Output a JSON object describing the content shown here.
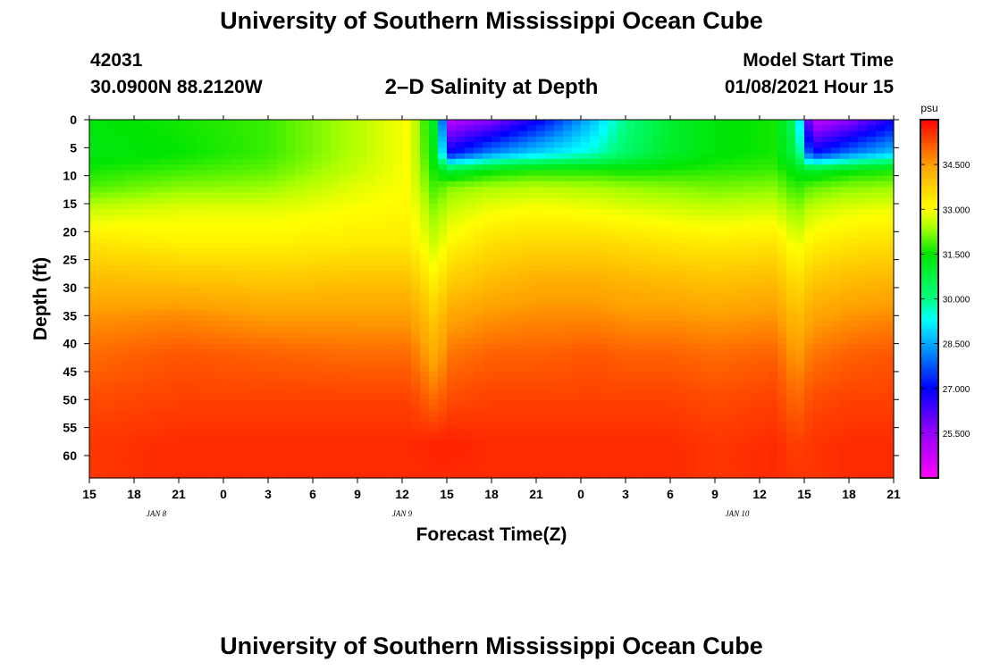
{
  "header": {
    "top_title": "University of Southern Mississippi Ocean Cube",
    "bottom_title": "University of Southern Mississippi Ocean Cube",
    "station_id": "42031",
    "station_coords": "30.0900N 88.2120W",
    "plot_title": "2–D Salinity at Depth",
    "model_start_label": "Model Start Time",
    "model_start_time": "01/08/2021 Hour 15"
  },
  "chart_data": {
    "type": "heatmap",
    "title": "2–D Salinity at Depth",
    "xlabel": "Forecast Time(Z)",
    "ylabel": "Depth (ft)",
    "x_hours_range": [
      0,
      54
    ],
    "y_range": [
      0,
      64
    ],
    "x_ticks": [
      {
        "hour": 0,
        "label": "15"
      },
      {
        "hour": 3,
        "label": "18"
      },
      {
        "hour": 6,
        "label": "21"
      },
      {
        "hour": 9,
        "label": "0"
      },
      {
        "hour": 12,
        "label": "3"
      },
      {
        "hour": 15,
        "label": "6"
      },
      {
        "hour": 18,
        "label": "9"
      },
      {
        "hour": 21,
        "label": "12"
      },
      {
        "hour": 24,
        "label": "15"
      },
      {
        "hour": 27,
        "label": "18"
      },
      {
        "hour": 30,
        "label": "21"
      },
      {
        "hour": 33,
        "label": "0"
      },
      {
        "hour": 36,
        "label": "3"
      },
      {
        "hour": 39,
        "label": "6"
      },
      {
        "hour": 42,
        "label": "9"
      },
      {
        "hour": 45,
        "label": "12"
      },
      {
        "hour": 48,
        "label": "15"
      },
      {
        "hour": 51,
        "label": "18"
      },
      {
        "hour": 54,
        "label": "21"
      }
    ],
    "day_labels": [
      {
        "hour": 4.5,
        "label": "JAN 8"
      },
      {
        "hour": 21,
        "label": "JAN 9"
      },
      {
        "hour": 43.5,
        "label": "JAN 10"
      }
    ],
    "y_ticks": [
      0,
      5,
      10,
      15,
      20,
      25,
      30,
      35,
      40,
      45,
      50,
      55,
      60
    ],
    "colorbar": {
      "unit": "psu",
      "range": [
        24.0,
        36.0
      ],
      "ticks": [
        "25.500",
        "27.000",
        "28.500",
        "30.000",
        "31.500",
        "33.000",
        "34.500"
      ]
    },
    "salinity_grid_psu": {
      "times_hours": [
        0,
        6,
        12,
        18,
        21.5,
        23.2,
        24.2,
        27,
        30,
        34,
        36,
        39,
        42,
        46,
        47.5,
        48.5,
        51,
        54
      ],
      "depths_ft": [
        0,
        6,
        9,
        12,
        16,
        22,
        28,
        35,
        42,
        50,
        58,
        64
      ],
      "values": [
        [
          31.4,
          31.6,
          31.8,
          32.5,
          33.0,
          31.0,
          25.0,
          25.6,
          26.8,
          28.8,
          30.0,
          31.0,
          31.4,
          31.6,
          30.2,
          24.8,
          25.5,
          26.8
        ],
        [
          31.3,
          31.5,
          31.8,
          32.5,
          33.0,
          31.2,
          27.0,
          28.2,
          28.9,
          29.6,
          30.3,
          31.0,
          31.4,
          31.6,
          30.6,
          27.0,
          28.0,
          28.8
        ],
        [
          31.6,
          31.8,
          32.0,
          32.6,
          33.0,
          31.5,
          30.8,
          31.4,
          31.6,
          31.6,
          31.5,
          31.6,
          31.7,
          31.8,
          31.3,
          31.0,
          31.4,
          31.6
        ],
        [
          31.9,
          32.2,
          32.3,
          32.8,
          33.0,
          31.8,
          32.2,
          32.4,
          32.5,
          32.4,
          32.3,
          32.2,
          32.1,
          32.2,
          31.7,
          32.0,
          32.2,
          32.3
        ],
        [
          32.6,
          32.8,
          32.8,
          33.0,
          33.1,
          32.2,
          32.6,
          32.9,
          33.0,
          32.9,
          32.8,
          32.7,
          32.6,
          32.7,
          32.2,
          32.6,
          32.8,
          32.9
        ],
        [
          33.4,
          33.2,
          33.2,
          33.3,
          33.3,
          32.6,
          33.1,
          33.5,
          33.6,
          33.6,
          33.5,
          33.4,
          33.3,
          33.4,
          32.8,
          33.2,
          33.4,
          33.5
        ],
        [
          34.0,
          33.9,
          33.8,
          33.9,
          33.9,
          33.1,
          33.7,
          34.0,
          34.2,
          34.2,
          34.1,
          34.0,
          33.9,
          34.0,
          33.4,
          33.8,
          34.0,
          34.1
        ],
        [
          34.6,
          34.7,
          34.5,
          34.5,
          34.5,
          33.8,
          34.4,
          34.6,
          34.7,
          34.7,
          34.6,
          34.6,
          34.5,
          34.6,
          34.0,
          34.4,
          34.6,
          34.7
        ],
        [
          35.0,
          35.2,
          35.1,
          35.0,
          35.0,
          34.3,
          34.9,
          35.1,
          35.1,
          35.2,
          35.1,
          35.1,
          35.0,
          35.1,
          34.5,
          34.9,
          35.1,
          35.2
        ],
        [
          35.3,
          35.4,
          35.4,
          35.4,
          35.4,
          35.0,
          35.3,
          35.4,
          35.4,
          35.4,
          35.4,
          35.4,
          35.3,
          35.4,
          35.0,
          35.3,
          35.4,
          35.4
        ],
        [
          35.5,
          35.6,
          35.6,
          35.6,
          35.6,
          35.7,
          35.7,
          35.6,
          35.6,
          35.6,
          35.6,
          35.6,
          35.5,
          35.6,
          35.4,
          35.5,
          35.6,
          35.6
        ],
        [
          35.5,
          35.6,
          35.6,
          35.6,
          35.6,
          35.6,
          35.6,
          35.6,
          35.6,
          35.6,
          35.6,
          35.6,
          35.5,
          35.6,
          35.5,
          35.5,
          35.6,
          35.6
        ]
      ]
    }
  },
  "colors": {
    "frame": "#000000",
    "background": "#ffffff"
  }
}
